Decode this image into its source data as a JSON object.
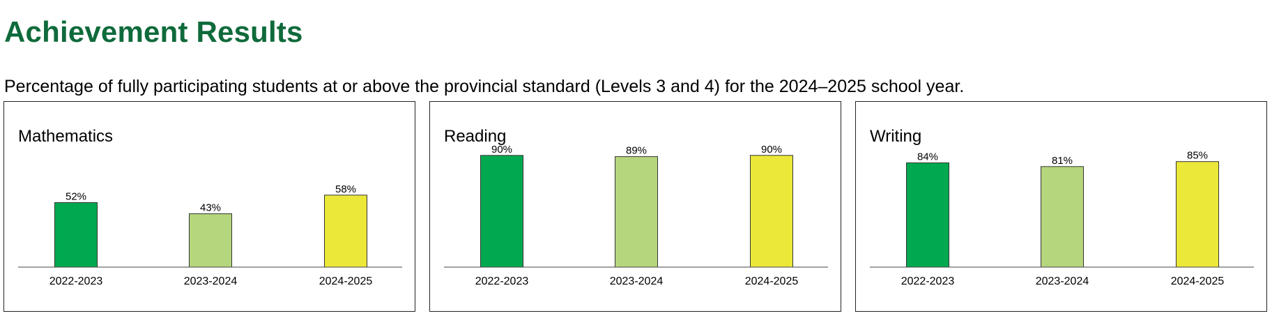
{
  "page": {
    "title": "Achievement Results",
    "subtitle": "Percentage of fully participating students at or above the provincial standard (Levels 3 and 4) for the 2024–2025 school year."
  },
  "colors": {
    "title": "#0f6a3b",
    "bar_2022_2023": "#00a94f",
    "bar_2023_2024": "#b5d67d",
    "bar_2024_2025": "#ebe83a"
  },
  "chart_data": [
    {
      "type": "bar",
      "title": "Mathematics",
      "categories": [
        "2022-2023",
        "2023-2024",
        "2024-2025"
      ],
      "values": [
        52,
        43,
        58
      ],
      "value_labels": [
        "52%",
        "43%",
        "58%"
      ],
      "ylim": [
        0,
        100
      ],
      "grid": false
    },
    {
      "type": "bar",
      "title": "Reading",
      "categories": [
        "2022-2023",
        "2023-2024",
        "2024-2025"
      ],
      "values": [
        90,
        89,
        90
      ],
      "value_labels": [
        "90%",
        "89%",
        "90%"
      ],
      "ylim": [
        0,
        100
      ],
      "grid": false
    },
    {
      "type": "bar",
      "title": "Writing",
      "categories": [
        "2022-2023",
        "2023-2024",
        "2024-2025"
      ],
      "values": [
        84,
        81,
        85
      ],
      "value_labels": [
        "84%",
        "81%",
        "85%"
      ],
      "ylim": [
        0,
        100
      ],
      "grid": false
    }
  ]
}
